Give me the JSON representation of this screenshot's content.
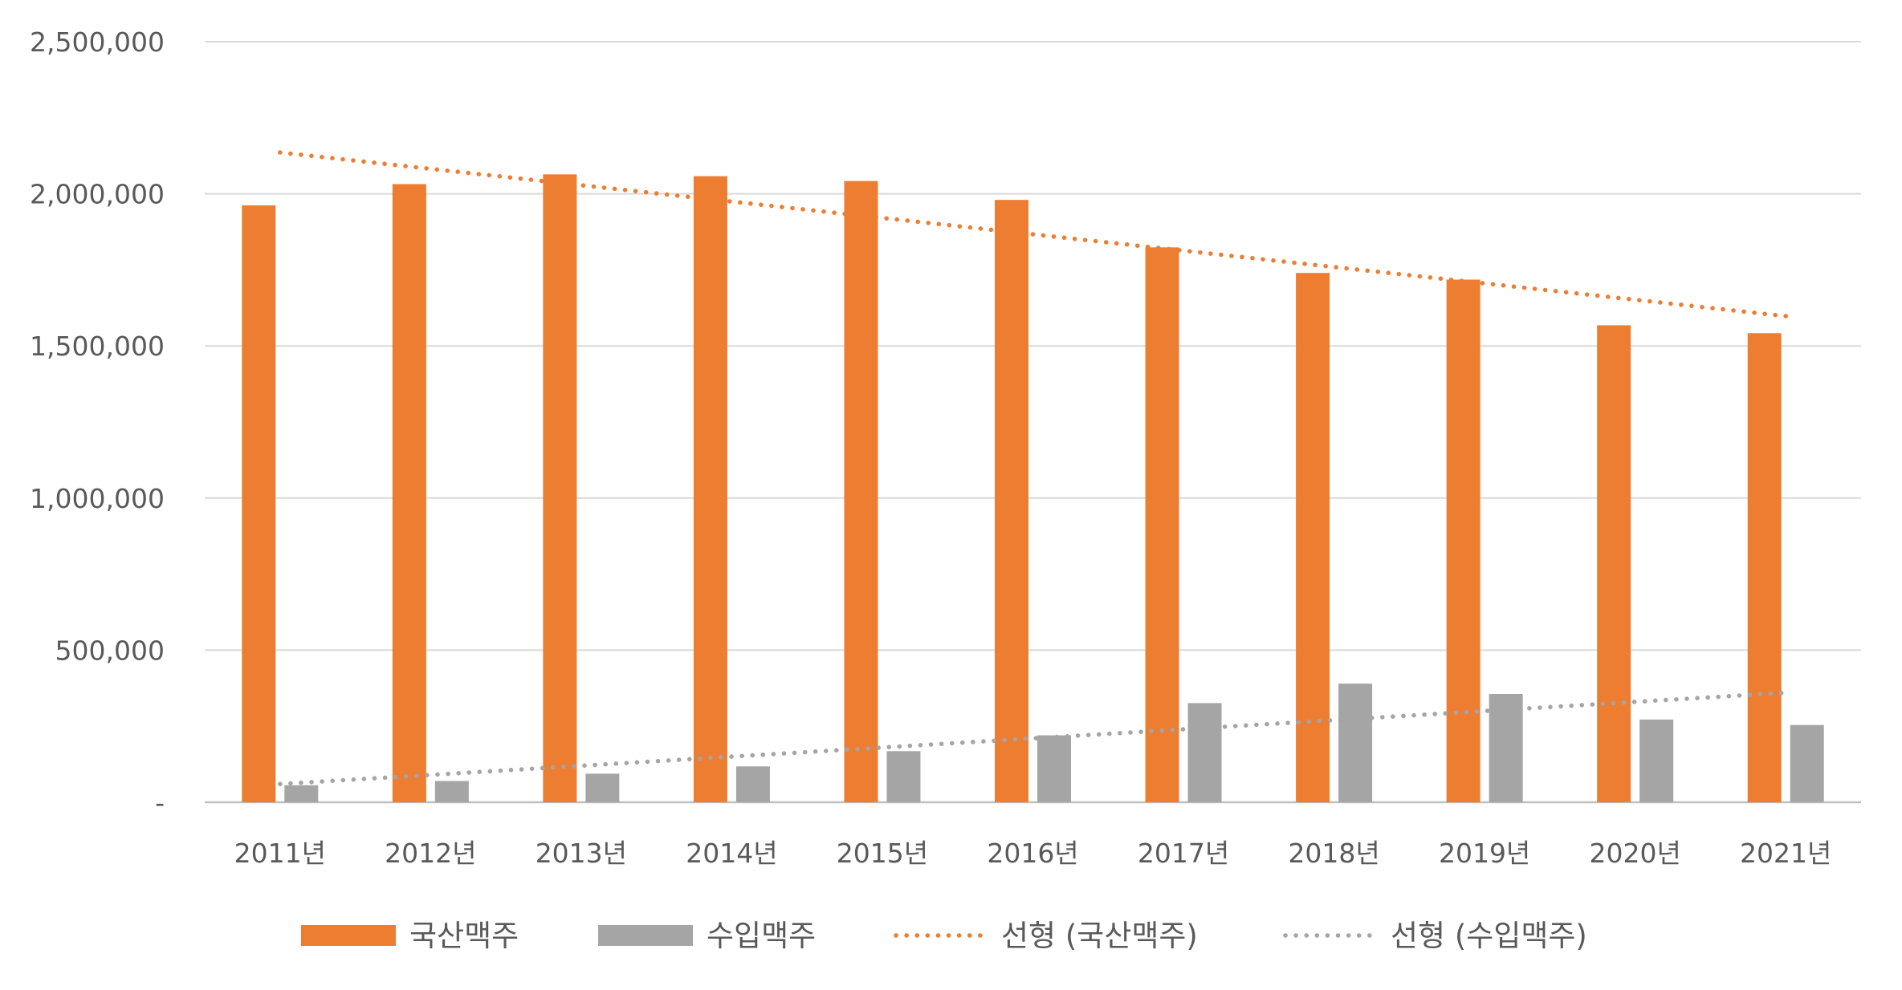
{
  "chart_data": {
    "type": "bar",
    "title": "",
    "xlabel": "",
    "ylabel": "",
    "categories": [
      "2011년",
      "2012년",
      "2013년",
      "2014년",
      "2015년",
      "2016년",
      "2017년",
      "2018년",
      "2019년",
      "2020년",
      "2021년"
    ],
    "series": [
      {
        "name": "국산맥주",
        "color": "#ED7D31",
        "values": [
          1962000,
          2032000,
          2064000,
          2058000,
          2042000,
          1980000,
          1824000,
          1740000,
          1718000,
          1568000,
          1542000
        ]
      },
      {
        "name": "수입맥주",
        "color": "#A5A5A5",
        "values": [
          56000,
          70000,
          94000,
          118000,
          168000,
          220000,
          326000,
          390000,
          356000,
          272000,
          254000
        ]
      }
    ],
    "trendlines": [
      {
        "name": "선형 (국산맥주)",
        "series": "국산맥주",
        "kind": "linear",
        "color": "#ED7D31",
        "start_value": 2136000,
        "end_value": 1598000
      },
      {
        "name": "선형 (수입맥주)",
        "series": "수입맥주",
        "kind": "linear",
        "color": "#A5A5A5",
        "start_value": 60000,
        "end_value": 360000
      }
    ],
    "y_ticks": [
      0,
      500000,
      1000000,
      1500000,
      2000000,
      2500000
    ],
    "y_tick_labels": [
      "-",
      "500,000",
      "1,000,000",
      "1,500,000",
      "2,000,000",
      "2,500,000"
    ],
    "ylim": [
      0,
      2500000
    ],
    "grid": true,
    "legend_position": "bottom"
  }
}
